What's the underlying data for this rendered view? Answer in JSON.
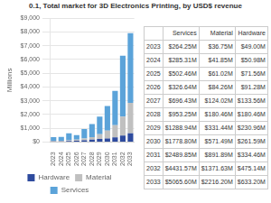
{
  "chart_data": {
    "type": "bar",
    "stacked": true,
    "title": "0.1, Total market for 3D Electronics Printing, by USD$ revenue",
    "ylabel": "Millions",
    "categories": [
      "2023",
      "2024",
      "2025",
      "2026",
      "2027",
      "2028",
      "2029",
      "2030",
      "2031",
      "2032",
      "2033"
    ],
    "series": [
      {
        "name": "Hardware",
        "color": "#2E4B9E",
        "values": [
          49.0,
          50.98,
          71.56,
          91.28,
          133.56,
          180.46,
          230.96,
          261.59,
          334.46,
          475.14,
          633.2
        ],
        "value_labels": [
          "$49.00M",
          "$50.98M",
          "$71.56M",
          "$91.28M",
          "$133.56M",
          "$180.46M",
          "$230.96M",
          "$261.59M",
          "$334.46M",
          "$475.14M",
          "$633.20M"
        ]
      },
      {
        "name": "Material",
        "color": "#C0C0C0",
        "values": [
          36.75,
          41.85,
          61.02,
          84.26,
          124.02,
          180.46,
          331.44,
          571.49,
          891.89,
          1371.63,
          2216.2
        ],
        "value_labels": [
          "$36.75M",
          "$41.85M",
          "$61.02M",
          "$84.26M",
          "$124.02M",
          "$180.46M",
          "$331.44M",
          "$571.49M",
          "$891.89M",
          "$1371.63M",
          "$2216.20M"
        ]
      },
      {
        "name": "Services",
        "color": "#5BA3D9",
        "values": [
          264.25,
          285.31,
          502.46,
          326.64,
          696.43,
          953.25,
          1288.94,
          1778.8,
          2489.85,
          4431.57,
          5065.6
        ],
        "value_labels": [
          "$264.25M",
          "$285.31M",
          "$502.46M",
          "$326.64M",
          "$696.43M",
          "$953.25M",
          "$1288.94M",
          "$1778.80M",
          "$2489.85M",
          "$4431.57M",
          "$5065.60M"
        ]
      }
    ],
    "ylim": [
      0,
      9000
    ],
    "yticks": [
      {
        "value": 0,
        "label": "$0"
      },
      {
        "value": 1000,
        "label": "$1,000"
      },
      {
        "value": 2000,
        "label": "$2,000"
      },
      {
        "value": 3000,
        "label": "$3,000"
      },
      {
        "value": 4000,
        "label": "$4,000"
      },
      {
        "value": 5000,
        "label": "$5,000"
      },
      {
        "value": 6000,
        "label": "$6,000"
      },
      {
        "value": 7000,
        "label": "$7,000"
      },
      {
        "value": 8000,
        "label": "$8,000"
      },
      {
        "value": 9000,
        "label": "$9,000"
      }
    ],
    "grid": true,
    "legend": "bottom"
  }
}
